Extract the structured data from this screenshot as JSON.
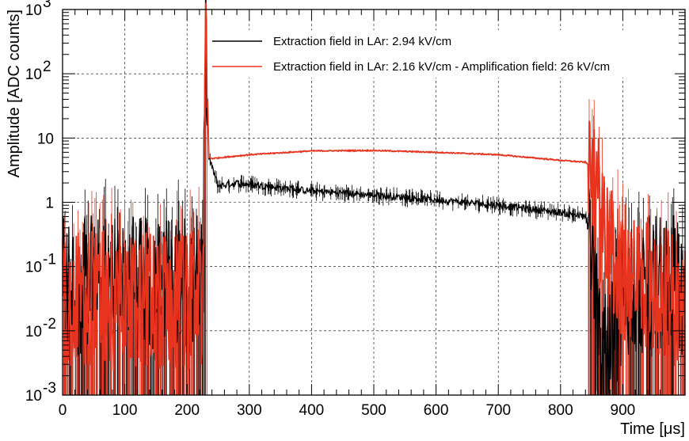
{
  "chart_data": {
    "type": "line",
    "xlabel": "Time [μs]",
    "ylabel": "Amplitude [ADC counts]",
    "xlim": [
      0,
      1000
    ],
    "ylim": [
      0.001,
      1000
    ],
    "yscale": "log",
    "x_ticks": [
      0,
      100,
      200,
      300,
      400,
      500,
      600,
      700,
      800,
      900
    ],
    "x_tick_labels": [
      "0",
      "100",
      "200",
      "300",
      "400",
      "500",
      "600",
      "700",
      "800",
      "900"
    ],
    "y_ticks": [
      0.001,
      0.01,
      0.1,
      1,
      10,
      100,
      1000
    ],
    "y_tick_labels": [
      {
        "base": "10",
        "exp": "-3"
      },
      {
        "base": "10",
        "exp": "-2"
      },
      {
        "base": "10",
        "exp": "-1"
      },
      {
        "base": "1",
        "exp": ""
      },
      {
        "base": "10",
        "exp": ""
      },
      {
        "base": "10",
        "exp": "2"
      },
      {
        "base": "10",
        "exp": "3"
      }
    ],
    "grid": true,
    "legend_position": "top",
    "series": [
      {
        "name": "Extraction field in LAr: 2.94 kV/cm",
        "color": "#000000",
        "x": [
          0,
          100,
          200,
          225,
          228,
          230,
          235,
          250,
          280,
          300,
          400,
          500,
          600,
          700,
          800,
          840,
          850,
          860,
          880,
          900,
          1000
        ],
        "y": [
          0.05,
          0.05,
          0.05,
          0.05,
          5,
          800,
          5,
          1.8,
          2.0,
          1.9,
          1.5,
          1.3,
          1.1,
          0.9,
          0.7,
          0.6,
          0.2,
          0.01,
          0.005,
          0.05,
          0.05
        ]
      },
      {
        "name": "Extraction field in LAr: 2.16 kV/cm - Amplification field: 26 kV/cm",
        "color": "#e8331e",
        "x": [
          0,
          100,
          200,
          225,
          228,
          230,
          235,
          240,
          300,
          400,
          500,
          600,
          700,
          800,
          840,
          850,
          860,
          880,
          900,
          1000
        ],
        "y": [
          0.03,
          0.03,
          0.03,
          0.03,
          5,
          800,
          5,
          4.8,
          5.5,
          6.3,
          6.4,
          6.0,
          5.5,
          4.5,
          4.2,
          3.5,
          1.0,
          0.15,
          0.08,
          0.03
        ]
      }
    ]
  }
}
